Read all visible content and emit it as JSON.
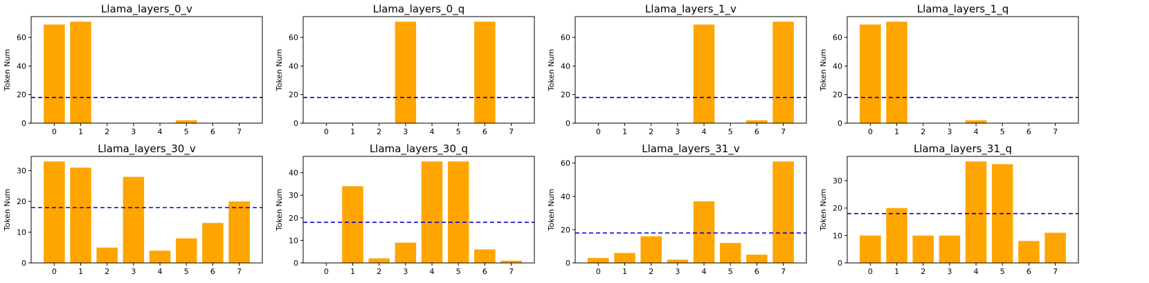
{
  "colors": {
    "bar": "#FFA500",
    "threshold": "#0000CC"
  },
  "chart_data": [
    {
      "type": "bar",
      "title": "Llama_layers_0_v",
      "ylabel": "Token Num",
      "categories": [
        "0",
        "1",
        "2",
        "3",
        "4",
        "5",
        "6",
        "7"
      ],
      "values": [
        69,
        71,
        0,
        0,
        0,
        2,
        0,
        0
      ],
      "ylim": [
        0,
        74.55
      ],
      "yticks": [
        "0",
        "20",
        "40",
        "60"
      ],
      "threshold": 18
    },
    {
      "type": "bar",
      "title": "Llama_layers_0_q",
      "ylabel": "Token Num",
      "categories": [
        "0",
        "1",
        "2",
        "3",
        "4",
        "5",
        "6",
        "7"
      ],
      "values": [
        0,
        0,
        0,
        71,
        0,
        0,
        71,
        0
      ],
      "ylim": [
        0,
        74.55
      ],
      "yticks": [
        "0",
        "20",
        "40",
        "60"
      ],
      "threshold": 18
    },
    {
      "type": "bar",
      "title": "Llama_layers_1_v",
      "ylabel": "Token Num",
      "categories": [
        "0",
        "1",
        "2",
        "3",
        "4",
        "5",
        "6",
        "7"
      ],
      "values": [
        0,
        0,
        0,
        0,
        69,
        0,
        2,
        71
      ],
      "ylim": [
        0,
        74.55
      ],
      "yticks": [
        "0",
        "20",
        "40",
        "60"
      ],
      "threshold": 18
    },
    {
      "type": "bar",
      "title": "Llama_layers_1_q",
      "ylabel": "Token Num",
      "categories": [
        "0",
        "1",
        "2",
        "3",
        "4",
        "5",
        "6",
        "7"
      ],
      "values": [
        69,
        71,
        0,
        0,
        2,
        0,
        0,
        0
      ],
      "ylim": [
        0,
        74.55
      ],
      "yticks": [
        "0",
        "20",
        "40",
        "60"
      ],
      "threshold": 18
    },
    {
      "type": "bar",
      "title": "Llama_layers_30_v",
      "ylabel": "Token Num",
      "categories": [
        "0",
        "1",
        "2",
        "3",
        "4",
        "5",
        "6",
        "7"
      ],
      "values": [
        33,
        31,
        5,
        28,
        4,
        8,
        13,
        20
      ],
      "ylim": [
        0,
        34.65
      ],
      "yticks": [
        "0",
        "10",
        "20",
        "30"
      ],
      "threshold": 18
    },
    {
      "type": "bar",
      "title": "Llama_layers_30_q",
      "ylabel": "Token Num",
      "categories": [
        "0",
        "1",
        "2",
        "3",
        "4",
        "5",
        "6",
        "7"
      ],
      "values": [
        0,
        34,
        2,
        9,
        45,
        45,
        6,
        1
      ],
      "ylim": [
        0,
        47.25
      ],
      "yticks": [
        "0",
        "10",
        "20",
        "30",
        "40"
      ],
      "threshold": 18
    },
    {
      "type": "bar",
      "title": "Llama_layers_31_v",
      "ylabel": "Token Num",
      "categories": [
        "0",
        "1",
        "2",
        "3",
        "4",
        "5",
        "6",
        "7"
      ],
      "values": [
        3,
        6,
        16,
        2,
        37,
        12,
        5,
        61
      ],
      "ylim": [
        0,
        64.05
      ],
      "yticks": [
        "0",
        "20",
        "40",
        "60"
      ],
      "threshold": 18
    },
    {
      "type": "bar",
      "title": "Llama_layers_31_q",
      "ylabel": "Token Num",
      "categories": [
        "0",
        "1",
        "2",
        "3",
        "4",
        "5",
        "6",
        "7"
      ],
      "values": [
        10,
        20,
        10,
        10,
        37,
        36,
        8,
        11
      ],
      "ylim": [
        0,
        38.85
      ],
      "yticks": [
        "0",
        "10",
        "20",
        "30"
      ],
      "threshold": 18
    }
  ]
}
